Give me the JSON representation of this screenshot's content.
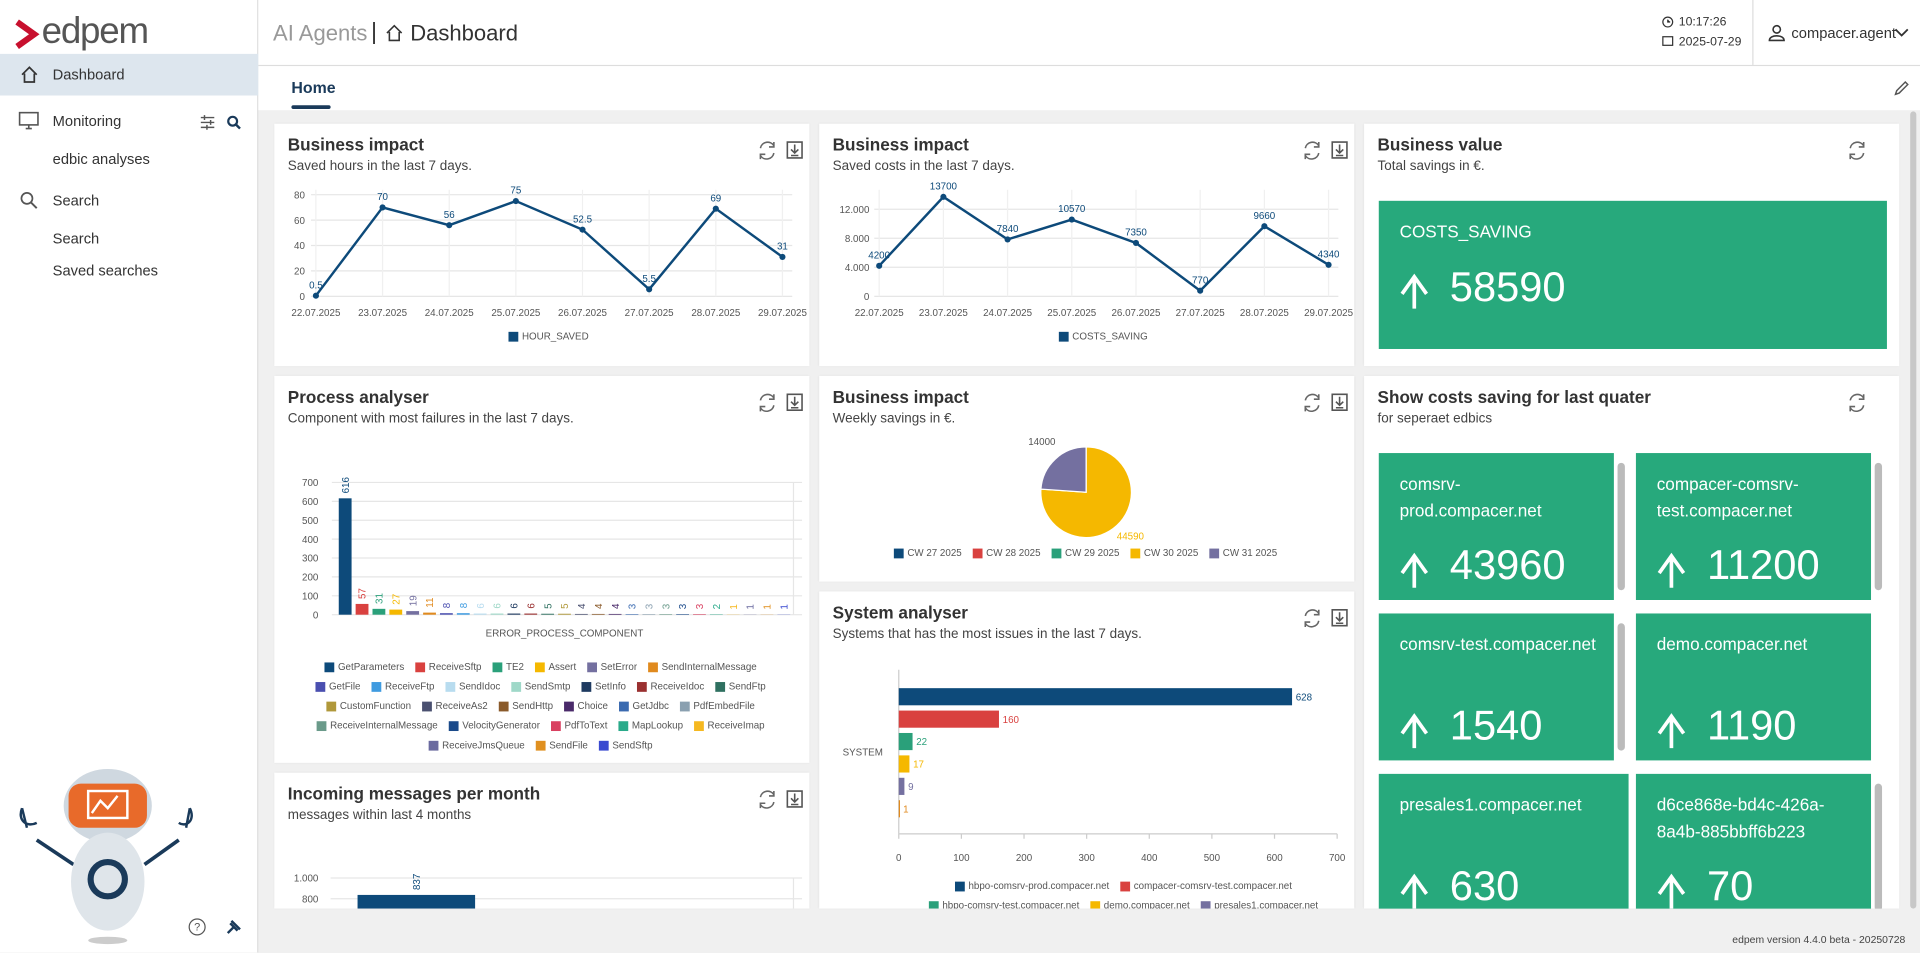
{
  "brand": "edpem",
  "header": {
    "section": "AI Agents",
    "page": "Dashboard",
    "time": "10:17:26",
    "date": "2025-07-29",
    "user": "compacer.agent"
  },
  "sidebar": {
    "items": [
      "Dashboard",
      "Monitoring",
      "edbic analyses",
      "Search",
      "Search",
      "Saved searches"
    ]
  },
  "tab": "Home",
  "footer": "edpem version 4.4.0 beta - 20250728",
  "chart_data": [
    {
      "type": "line",
      "title": "Business impact",
      "subtitle": "Saved hours in the last 7 days.",
      "categories": [
        "22.07.2025",
        "23.07.2025",
        "24.07.2025",
        "25.07.2025",
        "26.07.2025",
        "27.07.2025",
        "28.07.2025",
        "29.07.2025"
      ],
      "series": [
        {
          "name": "HOUR_SAVED",
          "color": "#0d4a7a",
          "values": [
            0.5,
            70,
            56,
            75,
            52.5,
            5.5,
            69,
            31
          ]
        }
      ],
      "ylim": [
        0,
        80
      ],
      "yticks": [
        0,
        20,
        40,
        60,
        80
      ],
      "grid": true
    },
    {
      "type": "line",
      "title": "Business impact",
      "subtitle": "Saved costs in the last 7 days.",
      "categories": [
        "22.07.2025",
        "23.07.2025",
        "24.07.2025",
        "25.07.2025",
        "26.07.2025",
        "27.07.2025",
        "28.07.2025",
        "29.07.2025"
      ],
      "series": [
        {
          "name": "COSTS_SAVING",
          "color": "#0d4a7a",
          "values": [
            4200,
            13700,
            7840,
            10570,
            7350,
            770,
            9660,
            4340
          ]
        }
      ],
      "ylim": [
        0,
        14000
      ],
      "yticks": [
        0,
        {
          "value": 4000,
          "label": "4.000"
        },
        {
          "value": 8000,
          "label": "8.000"
        },
        {
          "value": 12000,
          "label": "12.000"
        }
      ],
      "grid": true
    },
    {
      "type": "bar",
      "title": "Process analyser",
      "subtitle": "Component with most failures in the last 7 days.",
      "xlabel": "ERROR_PROCESS_COMPONENT",
      "categories": [
        "GetParameters",
        "ReceiveSftp",
        "TE2",
        "Assert",
        "SetError",
        "SendInternalMessage",
        "GetFile",
        "ReceiveFtp",
        "SendIdoc",
        "SendSmtp",
        "SetInfo",
        "ReceiveIdoc",
        "SendFtp",
        "CustomFunction",
        "ReceiveAs2",
        "SendHttp",
        "Choice",
        "GetJdbc",
        "PdfEmbedFile",
        "ReceiveInternalMessage",
        "VelocityGenerator",
        "PdfToText",
        "MapLookup",
        "ReceiveImap",
        "ReceiveJmsQueue",
        "SendFile",
        "SendSftp"
      ],
      "values": [
        616,
        57,
        31,
        27,
        19,
        11,
        8,
        8,
        6,
        6,
        6,
        6,
        5,
        5,
        4,
        4,
        4,
        3,
        3,
        3,
        3,
        3,
        2,
        1,
        1,
        1,
        1
      ],
      "colors": [
        "#0d4a7a",
        "#d9413f",
        "#2aa07a",
        "#f5b800",
        "#7470a0",
        "#e08a1e",
        "#4a4fb0",
        "#3f9be0",
        "#b8dcef",
        "#9fd8c8",
        "#1e3a60",
        "#9a3030",
        "#2f7060",
        "#b0983a",
        "#4a5070",
        "#8a5a2a",
        "#4a2a6a",
        "#3a6ab0",
        "#8aa0b0",
        "#6a9a8a",
        "#1a4a8a",
        "#d94060",
        "#2aaa8a",
        "#f5b820",
        "#6a6aa0",
        "#e09020",
        "#3a4ad0"
      ],
      "ylim": [
        0,
        700
      ],
      "yticks": [
        0,
        100,
        200,
        300,
        400,
        500,
        600,
        700
      ],
      "grid": true
    },
    {
      "type": "pie",
      "title": "Business impact",
      "subtitle": "Weekly savings in €.",
      "categories": [
        "CW 27 2025",
        "CW 28 2025",
        "CW 29 2025",
        "CW 30 2025",
        "CW 31 2025"
      ],
      "values": [
        0,
        0,
        0,
        44590,
        14000
      ],
      "colors": [
        "#0d4a7a",
        "#d9413f",
        "#2aa07a",
        "#f5b800",
        "#7470a0"
      ]
    },
    {
      "type": "bar",
      "orientation": "horizontal",
      "title": "System analyser",
      "subtitle": "Systems that has the most issues in the last 7 days.",
      "ylabel": "SYSTEM",
      "series": [
        {
          "name": "hbpo-comsrv-prod.compacer.net",
          "color": "#0d4a7a",
          "values": [
            628
          ]
        },
        {
          "name": "compacer-comsrv-test.compacer.net",
          "color": "#d9413f",
          "values": [
            160
          ]
        },
        {
          "name": "hbpo-comsrv-test.compacer.net",
          "color": "#2aa07a",
          "values": [
            22
          ]
        },
        {
          "name": "demo.compacer.net",
          "color": "#f5b800",
          "values": [
            17
          ]
        },
        {
          "name": "presales1.compacer.net",
          "color": "#7470a0",
          "values": [
            9
          ]
        },
        {
          "name": null,
          "color": "#e08a1e",
          "values": [
            1
          ]
        }
      ],
      "xlim": [
        0,
        700
      ],
      "xticks": [
        0,
        100,
        200,
        300,
        400,
        500,
        600,
        700
      ],
      "grid": false
    },
    {
      "type": "bar",
      "title": "Incoming messages per month",
      "subtitle": "messages within last 4 months",
      "categories": [
        null
      ],
      "values": [
        837
      ],
      "color": "#0d4a7a",
      "ylim": [
        0,
        1000
      ],
      "yticks": [
        800,
        {
          "value": 1000,
          "label": "1.000"
        }
      ],
      "grid": true
    }
  ],
  "kpis": [
    {
      "title": "Business value",
      "subtitle": "Total savings in €.",
      "tiles": [
        {
          "name": "COSTS_SAVING",
          "value": 58590
        }
      ]
    },
    {
      "title": "Show costs saving for last quater",
      "subtitle": "for seperaet edbics",
      "tiles": [
        {
          "name": "comsrv-prod.compacer.net",
          "value": 43960
        },
        {
          "name": "compacer-comsrv-test.compacer.net",
          "value": 11200
        },
        {
          "name": "comsrv-test.compacer.net",
          "value": 1540
        },
        {
          "name": "demo.compacer.net",
          "value": 1190
        },
        {
          "name": "presales1.compacer.net",
          "value": 630
        },
        {
          "name": "d6ce868e-bd4c-426a-8a4b-885bbff6b223",
          "value": 70
        }
      ]
    }
  ]
}
